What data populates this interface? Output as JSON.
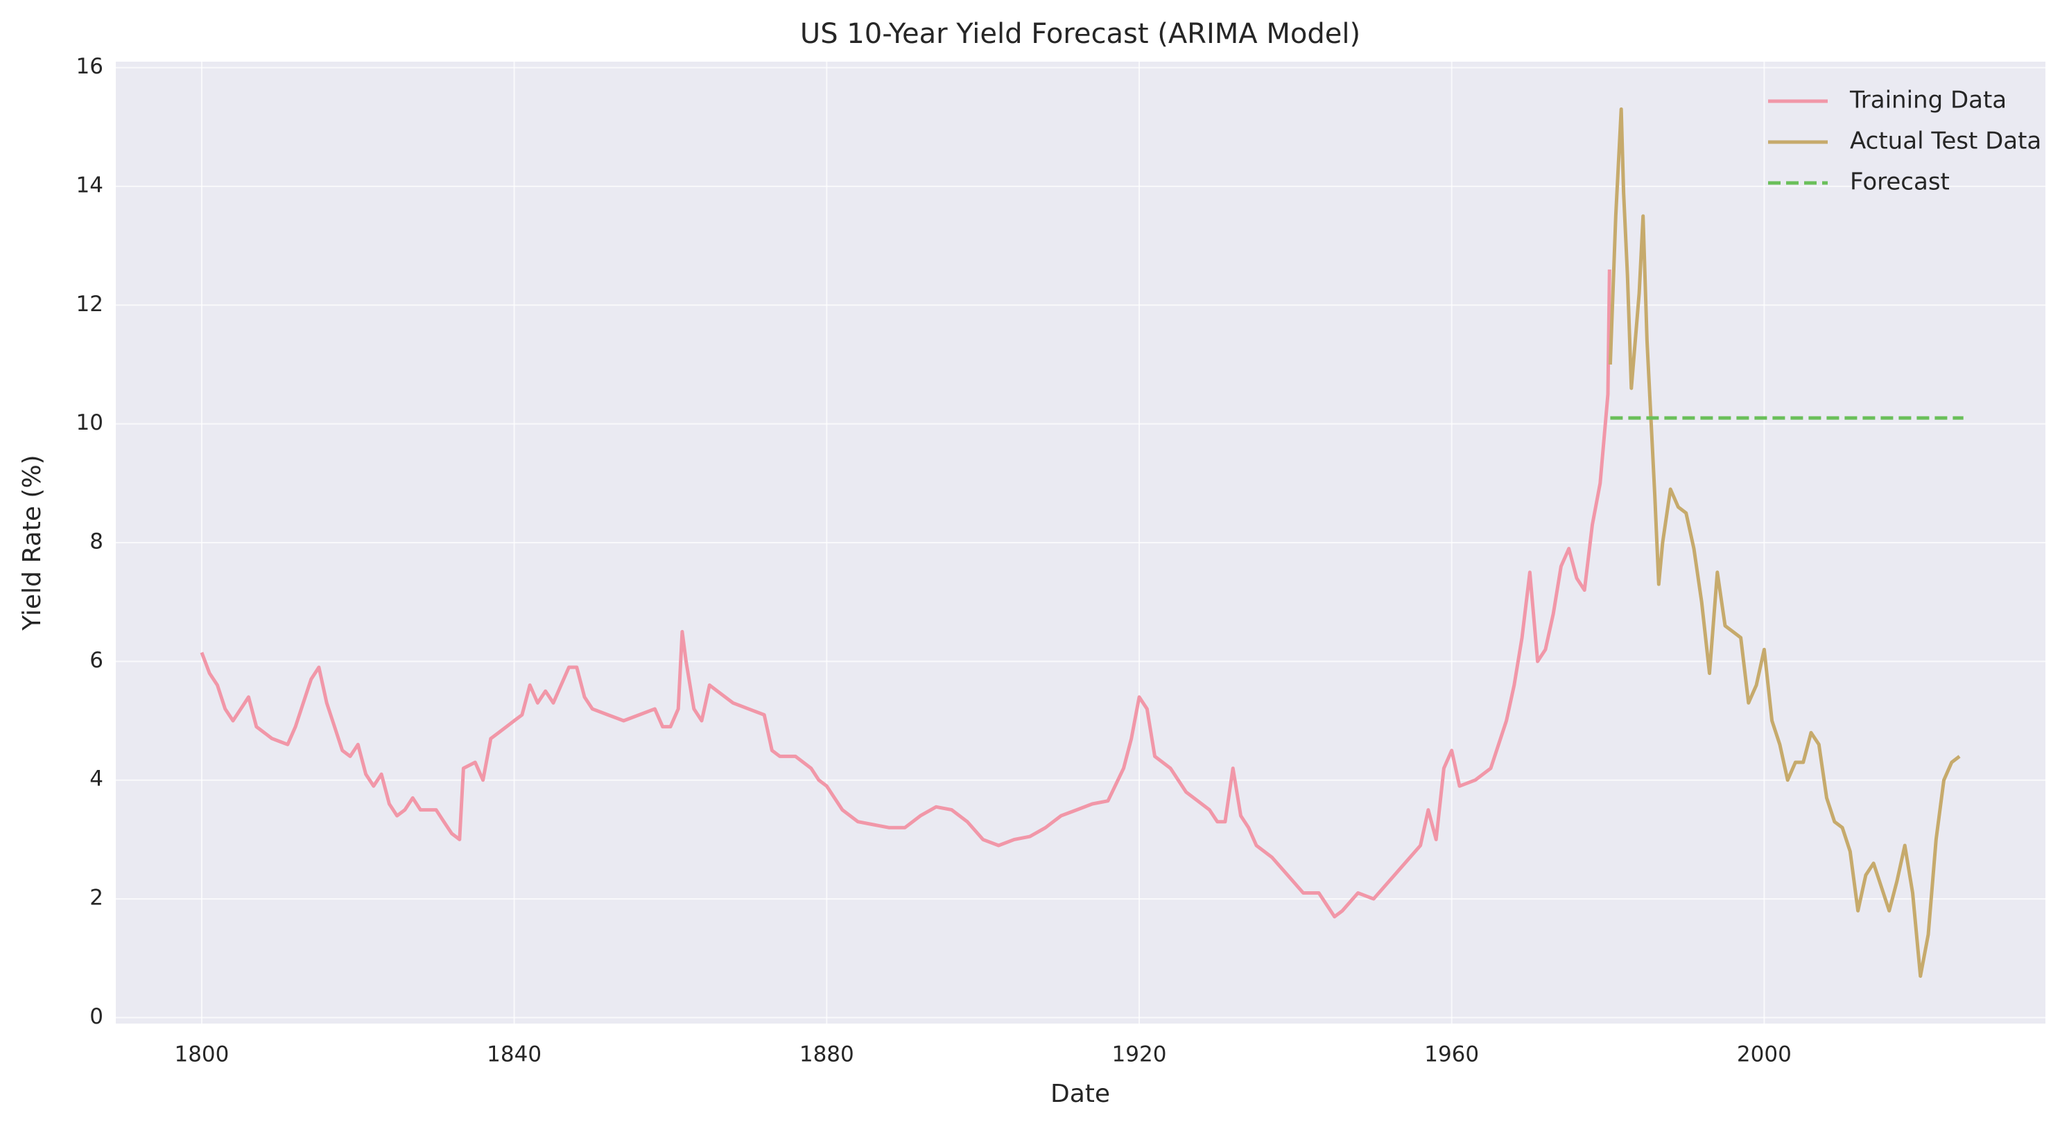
{
  "chart_data": {
    "type": "line",
    "title": "US 10-Year Yield Forecast (ARIMA Model)",
    "xlabel": "Date",
    "ylabel": "Yield Rate (%)",
    "xlim": [
      1789,
      2036
    ],
    "ylim": [
      -0.1,
      16.1
    ],
    "xticks": [
      1800,
      1840,
      1880,
      1920,
      1960,
      2000
    ],
    "yticks": [
      0,
      2,
      4,
      6,
      8,
      10,
      12,
      14,
      16
    ],
    "grid": true,
    "legend": "upper right",
    "series": [
      {
        "name": "Training Data",
        "color": "#f197a8",
        "linestyle": "solid",
        "x": [
          1800,
          1801,
          1802,
          1803,
          1804,
          1805,
          1806,
          1807,
          1808,
          1809,
          1810,
          1811,
          1812,
          1813,
          1814,
          1815,
          1816,
          1817,
          1818,
          1819,
          1820,
          1821,
          1822,
          1823,
          1824,
          1825,
          1826,
          1827,
          1828,
          1829,
          1830,
          1831,
          1832,
          1833,
          1833.5,
          1835,
          1836,
          1837,
          1838,
          1839,
          1840,
          1841,
          1842,
          1843,
          1844,
          1845,
          1846,
          1847,
          1848,
          1849,
          1850,
          1852,
          1854,
          1856,
          1858,
          1859,
          1860,
          1861,
          1861.5,
          1862,
          1863,
          1864,
          1865,
          1866,
          1868,
          1870,
          1872,
          1873,
          1874,
          1876,
          1878,
          1879,
          1880,
          1882,
          1884,
          1886,
          1888,
          1890,
          1892,
          1894,
          1896,
          1898,
          1900,
          1902,
          1904,
          1906,
          1908,
          1910,
          1912,
          1914,
          1916,
          1918,
          1919,
          1920,
          1921,
          1922,
          1924,
          1926,
          1928,
          1929,
          1930,
          1931,
          1932,
          1933,
          1934,
          1935,
          1937,
          1939,
          1941,
          1943,
          1945,
          1946,
          1948,
          1950,
          1952,
          1954,
          1956,
          1957,
          1958,
          1959,
          1960,
          1961,
          1963,
          1965,
          1966,
          1967,
          1968,
          1969,
          1970,
          1971,
          1972,
          1973,
          1974,
          1975,
          1976,
          1977,
          1978,
          1979,
          1980,
          1980.2
        ],
        "values": [
          6.15,
          5.8,
          5.6,
          5.2,
          5.0,
          5.2,
          5.4,
          4.9,
          4.8,
          4.7,
          4.65,
          4.6,
          4.9,
          5.3,
          5.7,
          5.9,
          5.3,
          4.9,
          4.5,
          4.4,
          4.6,
          4.1,
          3.9,
          4.1,
          3.6,
          3.4,
          3.5,
          3.7,
          3.5,
          3.5,
          3.5,
          3.3,
          3.1,
          3.0,
          4.2,
          4.3,
          4.0,
          4.7,
          4.8,
          4.9,
          5.0,
          5.1,
          5.6,
          5.3,
          5.5,
          5.3,
          5.6,
          5.9,
          5.9,
          5.4,
          5.2,
          5.1,
          5.0,
          5.1,
          5.2,
          4.9,
          4.9,
          5.2,
          6.5,
          6.0,
          5.2,
          5.0,
          5.6,
          5.5,
          5.3,
          5.2,
          5.1,
          4.5,
          4.4,
          4.4,
          4.2,
          4.0,
          3.9,
          3.5,
          3.3,
          3.25,
          3.2,
          3.2,
          3.4,
          3.55,
          3.5,
          3.3,
          3.0,
          2.9,
          3.0,
          3.05,
          3.2,
          3.4,
          3.5,
          3.6,
          3.65,
          4.2,
          4.7,
          5.4,
          5.2,
          4.4,
          4.2,
          3.8,
          3.6,
          3.5,
          3.3,
          3.3,
          4.2,
          3.4,
          3.2,
          2.9,
          2.7,
          2.4,
          2.1,
          2.1,
          1.7,
          1.8,
          2.1,
          2.0,
          2.3,
          2.6,
          2.9,
          3.5,
          3.0,
          4.2,
          4.5,
          3.9,
          4.0,
          4.2,
          4.6,
          5.0,
          5.6,
          6.4,
          7.5,
          6.0,
          6.2,
          6.8,
          7.6,
          7.9,
          7.4,
          7.2,
          8.3,
          9.0,
          10.5,
          12.6
        ]
      },
      {
        "name": "Actual Test Data",
        "color": "#c6aa6c",
        "linestyle": "solid",
        "x": [
          1980.3,
          1981,
          1981.7,
          1982,
          1982.5,
          1983,
          1984,
          1984.5,
          1985,
          1986,
          1986.5,
          1987,
          1988,
          1989,
          1990,
          1991,
          1992,
          1993,
          1994,
          1995,
          1996,
          1997,
          1998,
          1999,
          2000,
          2001,
          2002,
          2003,
          2004,
          2005,
          2006,
          2007,
          2008,
          2009,
          2010,
          2011,
          2012,
          2013,
          2014,
          2015,
          2016,
          2017,
          2018,
          2019,
          2020,
          2021,
          2022,
          2023,
          2024,
          2025
        ],
        "values": [
          11.0,
          13.5,
          15.3,
          13.9,
          12.5,
          10.6,
          12.2,
          13.5,
          11.4,
          8.8,
          7.3,
          8.0,
          8.9,
          8.6,
          8.5,
          7.9,
          7.0,
          5.8,
          7.5,
          6.6,
          6.5,
          6.4,
          5.3,
          5.6,
          6.2,
          5.0,
          4.6,
          4.0,
          4.3,
          4.3,
          4.8,
          4.6,
          3.7,
          3.3,
          3.2,
          2.8,
          1.8,
          2.4,
          2.6,
          2.2,
          1.8,
          2.3,
          2.9,
          2.1,
          0.7,
          1.4,
          3.0,
          4.0,
          4.3,
          4.4
        ]
      },
      {
        "name": "Forecast",
        "color": "#6abf5a",
        "linestyle": "dashed",
        "x": [
          1980.3,
          2025.5
        ],
        "values": [
          10.1,
          10.1
        ]
      }
    ]
  }
}
